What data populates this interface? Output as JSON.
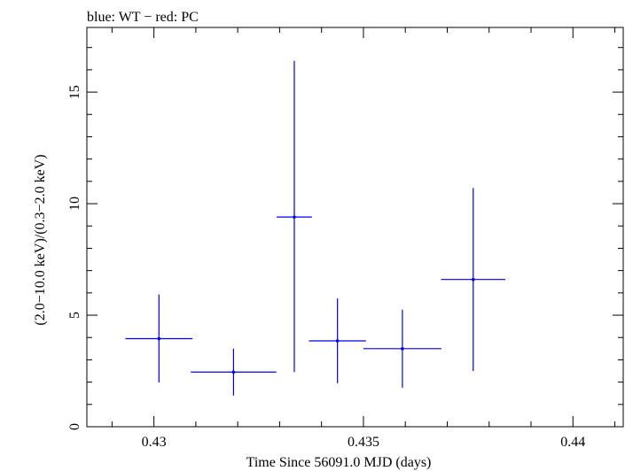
{
  "chart_data": {
    "type": "scatter",
    "title": "blue: WT − red: PC",
    "xlabel": "Time Since 56091.0 MJD (days)",
    "ylabel": "(2.0−10.0 keV)/(0.3−2.0 keV)",
    "xlim": [
      0.4284,
      0.4412
    ],
    "ylim": [
      0,
      17.9
    ],
    "x_ticks": [
      {
        "value": 0.43,
        "label": "0.43"
      },
      {
        "value": 0.435,
        "label": "0.435"
      },
      {
        "value": 0.44,
        "label": "0.44"
      }
    ],
    "y_ticks": [
      {
        "value": 0,
        "label": "0"
      },
      {
        "value": 5,
        "label": "5"
      },
      {
        "value": 10,
        "label": "10"
      },
      {
        "value": 15,
        "label": "15"
      }
    ],
    "x_minor_step": 0.001,
    "y_minor_step": 1,
    "grid": false,
    "series": [
      {
        "color": "#0000ee",
        "points": [
          {
            "x": 0.43012,
            "xerr": [
              0.0008,
              0.0008
            ],
            "y": 3.95,
            "yerr": [
              1.97,
              1.98
            ]
          },
          {
            "x": 0.4319,
            "xerr": [
              0.00102,
              0.00102
            ],
            "y": 2.45,
            "yerr": [
              1.05,
              1.05
            ]
          },
          {
            "x": 0.43335,
            "xerr": [
              0.00042,
              0.00042
            ],
            "y": 9.4,
            "yerr": [
              6.95,
              7.0
            ]
          },
          {
            "x": 0.43438,
            "xerr": [
              0.00068,
              0.00068
            ],
            "y": 3.85,
            "yerr": [
              1.9,
              1.9
            ]
          },
          {
            "x": 0.43593,
            "xerr": [
              0.00093,
              0.00093
            ],
            "y": 3.5,
            "yerr": [
              1.75,
              1.75
            ]
          },
          {
            "x": 0.43762,
            "xerr": [
              0.00077,
              0.00077
            ],
            "y": 6.6,
            "yerr": [
              4.1,
              4.1
            ]
          }
        ]
      }
    ]
  }
}
